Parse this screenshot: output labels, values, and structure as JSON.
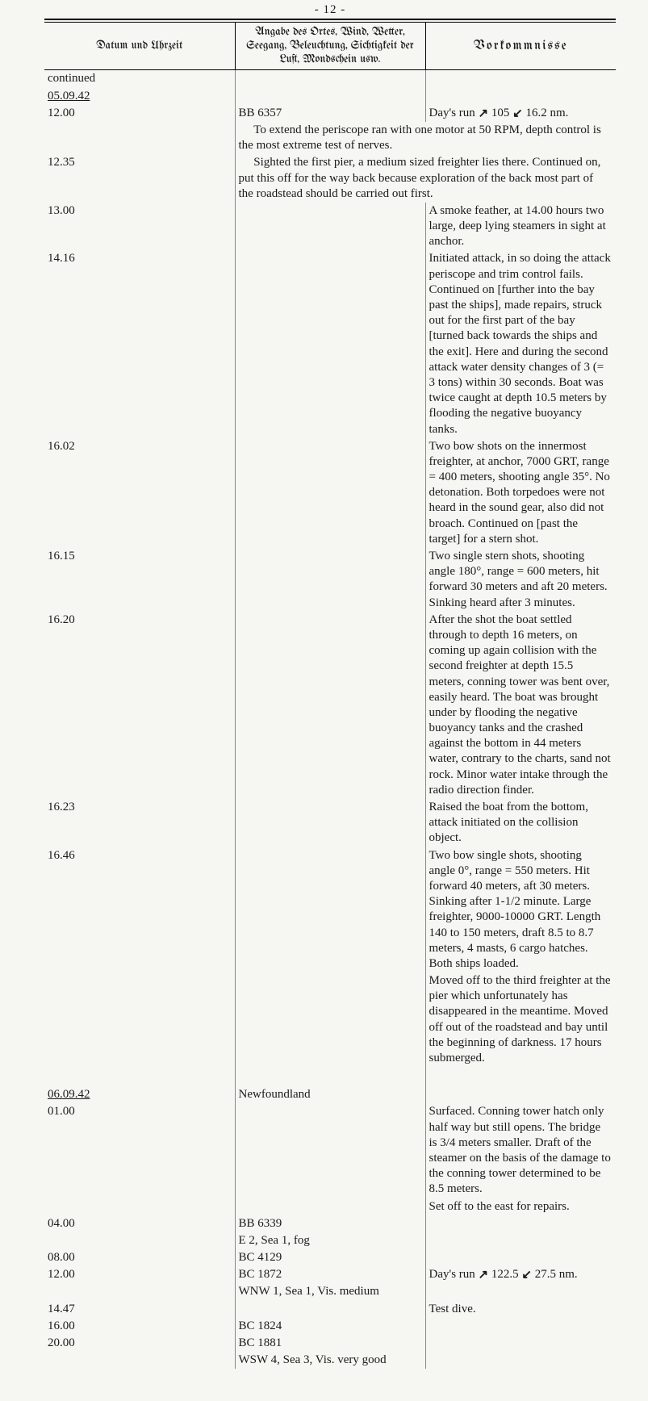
{
  "page_number": "- 12 -",
  "headers": {
    "col1": "Datum und Uhrzeit",
    "col2": "Angabe des Ortes, Wind, Wetter, Seegang, Beleuchtung, Sichtigkeit der Luft, Mondschein usw.",
    "col3": "Vorkommnisse"
  },
  "arrows": {
    "up": "↗",
    "down": "↙"
  },
  "rows": [
    {
      "time": "continued",
      "time_class": "continued",
      "loc": "",
      "evt": ""
    },
    {
      "time": "05.09.42",
      "time_class": "date",
      "loc": "",
      "evt": ""
    },
    {
      "time": "12.00",
      "loc": "BB 6357",
      "evt": "Day's run ↗ 105 ↙ 16.2 nm."
    },
    {
      "time": "",
      "loc": "",
      "evt_full": "     To extend the periscope ran with one motor at 50 RPM, depth control is the most extreme test of nerves."
    },
    {
      "time": "12.35",
      "loc": "",
      "evt_full": "     Sighted the first pier, a medium sized freighter lies there.  Continued on, put this off for the way back because exploration of the back most part of the roadstead should be carried out first."
    },
    {
      "time": "13.00",
      "loc": "",
      "evt": "A smoke feather, at 14.00 hours two large, deep lying steamers in sight at anchor."
    },
    {
      "time": "14.16",
      "loc": "",
      "evt": "Initiated attack, in so doing the attack periscope and trim control fails.  Continued on [further into the bay past the ships], made repairs, struck out for the first part of the bay [turned back towards the ships and the exit].  Here and during the second attack water density changes of 3 (= 3 tons) within 30 seconds.  Boat was twice caught at depth 10.5 meters by flooding the negative buoyancy tanks."
    },
    {
      "time": "16.02",
      "loc": "",
      "evt": "Two bow shots on the innermost freighter, at anchor, 7000 GRT, range = 400 meters, shooting angle 35°.  No detonation.  Both torpedoes were not heard in the sound gear, also did not broach.  Continued on [past the target] for a stern shot."
    },
    {
      "time": "16.15",
      "loc": "",
      "evt": "Two single stern shots, shooting angle 180°, range = 600 meters, hit forward 30 meters and aft 20 meters.  Sinking heard after 3 minutes."
    },
    {
      "time": "16.20",
      "loc": "",
      "evt": "After the shot the boat settled through to depth 16 meters, on coming up again collision with the second freighter at depth 15.5 meters, conning tower was bent over, easily heard.  The boat was brought under by flooding the negative buoyancy tanks and the crashed against the bottom in 44 meters water, contrary to the charts, sand not rock.  Minor water intake through the radio direction finder."
    },
    {
      "time": "16.23",
      "loc": "",
      "evt": "Raised the boat from the bottom, attack initiated on the collision object."
    },
    {
      "time": "16.46",
      "loc": "",
      "evt": "Two bow single shots, shooting angle 0°, range = 550 meters.  Hit forward  40 meters, aft 30 meters.  Sinking after 1-1/2 minute.  Large freighter, 9000-10000 GRT.  Length 140 to 150 meters, draft 8.5 to 8.7 meters, 4 masts, 6 cargo hatches.  Both ships loaded."
    },
    {
      "time": "",
      "loc": "",
      "evt": "Moved off to the third freighter at the pier which unfortunately has disappeared in the meantime.  Moved off out of the roadstead and bay until the beginning of darkness.  17 hours submerged."
    },
    {
      "type": "bigspacer"
    },
    {
      "time": "06.09.42",
      "time_class": "date",
      "loc": "Newfoundland",
      "evt": ""
    },
    {
      "time": "01.00",
      "loc": "",
      "evt": "Surfaced.  Conning tower hatch only half way but still opens.  The bridge is 3/4 meters smaller.  Draft of the steamer on the basis of the damage to the conning tower determined to be 8.5 meters."
    },
    {
      "time": "",
      "loc": "",
      "evt": "Set off to the east for repairs."
    },
    {
      "time": "04.00",
      "loc": "BB 6339",
      "evt": ""
    },
    {
      "time": "",
      "loc": "E 2, Sea 1, fog",
      "evt": ""
    },
    {
      "time": "08.00",
      "loc": "BC 4129",
      "evt": ""
    },
    {
      "time": "12.00",
      "loc": "BC 1872",
      "evt": "Day's run ↗ 122.5 ↙ 27.5 nm."
    },
    {
      "time": "",
      "loc": "WNW 1, Sea 1, Vis. medium",
      "evt": ""
    },
    {
      "time": "14.47",
      "loc": "",
      "evt": "Test dive."
    },
    {
      "time": "16.00",
      "loc": "BC 1824",
      "evt": ""
    },
    {
      "time": "20.00",
      "loc": "BC 1881",
      "evt": ""
    },
    {
      "time": "",
      "loc": "WSW 4, Sea 3, Vis. very good",
      "evt": ""
    }
  ]
}
